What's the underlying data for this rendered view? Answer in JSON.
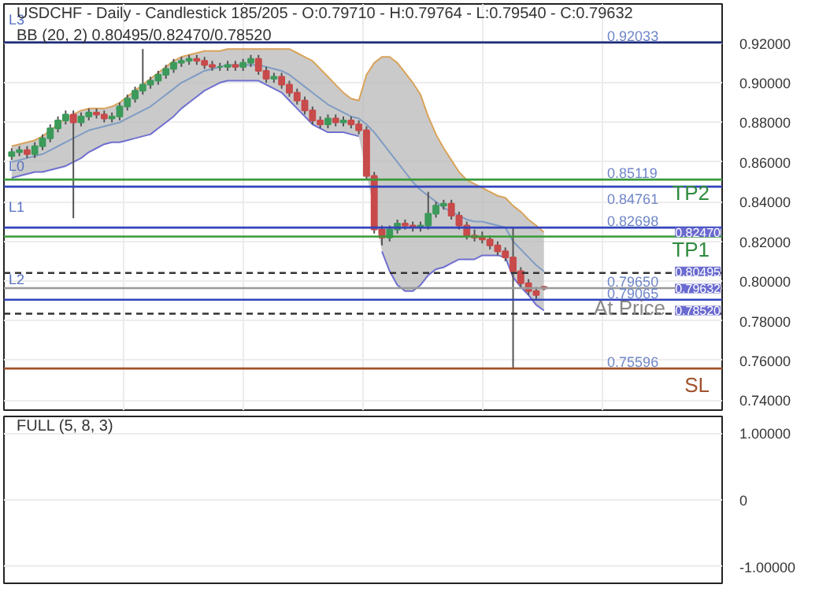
{
  "chart_data": [
    {
      "type": "candlestick",
      "title": "USDCHF - Daily - Candlestick   185/205 - O:0.79710 - H:0.79764 - L:0.79540 - C:0.79632",
      "subtitle": "BB (20, 2)   0.80495/0.82470/0.78520",
      "categories": [
        null,
        null,
        null,
        null,
        null,
        null,
        null,
        null,
        null,
        null,
        null,
        null,
        null,
        null,
        null,
        null,
        null,
        null,
        null,
        null,
        null,
        null,
        null,
        null,
        null,
        null,
        null,
        null,
        null,
        null,
        null,
        null,
        null,
        null,
        null,
        null,
        null,
        null,
        null,
        null,
        null,
        null,
        null,
        null,
        null,
        null,
        null,
        null,
        null,
        null,
        null,
        null,
        null,
        null,
        null,
        null,
        null,
        null,
        null,
        null,
        null,
        null,
        null,
        null,
        null,
        null,
        null,
        null,
        null,
        null
      ],
      "ohlc": [
        [
          0.863,
          0.867,
          0.861,
          0.865
        ],
        [
          0.865,
          0.868,
          0.863,
          0.866
        ],
        [
          0.866,
          0.868,
          0.862,
          0.864
        ],
        [
          0.864,
          0.87,
          0.862,
          0.868
        ],
        [
          0.868,
          0.874,
          0.866,
          0.872
        ],
        [
          0.872,
          0.879,
          0.87,
          0.877
        ],
        [
          0.877,
          0.883,
          0.875,
          0.881
        ],
        [
          0.881,
          0.886,
          0.879,
          0.884
        ],
        [
          0.884,
          0.886,
          0.8317,
          0.88
        ],
        [
          0.88,
          0.885,
          0.878,
          0.883
        ],
        [
          0.883,
          0.887,
          0.881,
          0.885
        ],
        [
          0.885,
          0.887,
          0.882,
          0.884
        ],
        [
          0.884,
          0.886,
          0.88,
          0.882
        ],
        [
          0.882,
          0.885,
          0.88,
          0.883
        ],
        [
          0.883,
          0.89,
          0.881,
          0.888
        ],
        [
          0.888,
          0.894,
          0.886,
          0.892
        ],
        [
          0.892,
          0.898,
          0.89,
          0.896
        ],
        [
          0.896,
          0.917,
          0.894,
          0.899
        ],
        [
          0.899,
          0.903,
          0.897,
          0.901
        ],
        [
          0.901,
          0.906,
          0.899,
          0.904
        ],
        [
          0.904,
          0.909,
          0.902,
          0.907
        ],
        [
          0.907,
          0.912,
          0.905,
          0.91
        ],
        [
          0.91,
          0.913,
          0.908,
          0.911
        ],
        [
          0.911,
          0.914,
          0.909,
          0.912
        ],
        [
          0.912,
          0.914,
          0.909,
          0.911
        ],
        [
          0.911,
          0.913,
          0.907,
          0.909
        ],
        [
          0.909,
          0.911,
          0.906,
          0.908
        ],
        [
          0.908,
          0.91,
          0.906,
          0.908
        ],
        [
          0.908,
          0.911,
          0.906,
          0.909
        ],
        [
          0.909,
          0.911,
          0.906,
          0.908
        ],
        [
          0.908,
          0.912,
          0.906,
          0.91
        ],
        [
          0.91,
          0.914,
          0.908,
          0.912
        ],
        [
          0.912,
          0.914,
          0.904,
          0.906
        ],
        [
          0.906,
          0.908,
          0.9,
          0.902
        ],
        [
          0.902,
          0.905,
          0.9,
          0.903
        ],
        [
          0.903,
          0.905,
          0.897,
          0.899
        ],
        [
          0.899,
          0.901,
          0.893,
          0.895
        ],
        [
          0.895,
          0.897,
          0.889,
          0.891
        ],
        [
          0.891,
          0.893,
          0.884,
          0.886
        ],
        [
          0.886,
          0.888,
          0.879,
          0.881
        ],
        [
          0.881,
          0.883,
          0.877,
          0.879
        ],
        [
          0.879,
          0.884,
          0.877,
          0.882
        ],
        [
          0.882,
          0.884,
          0.878,
          0.88
        ],
        [
          0.88,
          0.883,
          0.878,
          0.881
        ],
        [
          0.881,
          0.883,
          0.877,
          0.879
        ],
        [
          0.879,
          0.881,
          0.874,
          0.876
        ],
        [
          0.876,
          0.878,
          0.851,
          0.853
        ],
        [
          0.853,
          0.855,
          0.824,
          0.826
        ],
        [
          0.826,
          0.828,
          0.818,
          0.822
        ],
        [
          0.822,
          0.828,
          0.82,
          0.826
        ],
        [
          0.826,
          0.831,
          0.824,
          0.829
        ],
        [
          0.829,
          0.831,
          0.826,
          0.828
        ],
        [
          0.828,
          0.83,
          0.825,
          0.827
        ],
        [
          0.827,
          0.83,
          0.825,
          0.828
        ],
        [
          0.828,
          0.845,
          0.826,
          0.834
        ],
        [
          0.834,
          0.84,
          0.832,
          0.838
        ],
        [
          0.838,
          0.841,
          0.836,
          0.839
        ],
        [
          0.839,
          0.841,
          0.831,
          0.833
        ],
        [
          0.833,
          0.835,
          0.826,
          0.828
        ],
        [
          0.828,
          0.83,
          0.821,
          0.823
        ],
        [
          0.823,
          0.826,
          0.82,
          0.822
        ],
        [
          0.822,
          0.825,
          0.819,
          0.821
        ],
        [
          0.821,
          0.823,
          0.816,
          0.818
        ],
        [
          0.818,
          0.82,
          0.813,
          0.815
        ],
        [
          0.815,
          0.817,
          0.81,
          0.812
        ],
        [
          0.812,
          0.827,
          0.756,
          0.805
        ],
        [
          0.805,
          0.807,
          0.797,
          0.799
        ],
        [
          0.799,
          0.801,
          0.793,
          0.795
        ],
        [
          0.795,
          0.797,
          0.791,
          0.793
        ],
        [
          0.7971,
          0.79764,
          0.7954,
          0.79632
        ]
      ],
      "series": [
        {
          "type": "line",
          "color": "#7f9cc4",
          "values": [
            0.86,
            0.861,
            0.862,
            0.863,
            0.864,
            0.866,
            0.868,
            0.87,
            0.872,
            0.874,
            0.876,
            0.877,
            0.878,
            0.879,
            0.88,
            0.882,
            0.884,
            0.886,
            0.888,
            0.891,
            0.894,
            0.897,
            0.9,
            0.902,
            0.904,
            0.906,
            0.907,
            0.908,
            0.909,
            0.909,
            0.909,
            0.909,
            0.909,
            0.908,
            0.907,
            0.906,
            0.904,
            0.901,
            0.898,
            0.895,
            0.892,
            0.889,
            0.887,
            0.885,
            0.883,
            0.882,
            0.879,
            0.875,
            0.87,
            0.865,
            0.86,
            0.855,
            0.85,
            0.846,
            0.843,
            0.84,
            0.837,
            0.835,
            0.833,
            0.831,
            0.83,
            0.83,
            0.829,
            0.828,
            0.827,
            0.82,
            0.816,
            0.812,
            0.808,
            0.80495
          ],
          "lower": [
            0.852,
            0.853,
            0.854,
            0.855,
            0.855,
            0.856,
            0.857,
            0.858,
            0.86,
            0.862,
            0.865,
            0.867,
            0.869,
            0.87,
            0.87,
            0.871,
            0.872,
            0.873,
            0.874,
            0.877,
            0.88,
            0.883,
            0.887,
            0.89,
            0.893,
            0.896,
            0.898,
            0.9,
            0.901,
            0.901,
            0.901,
            0.901,
            0.901,
            0.899,
            0.897,
            0.895,
            0.891,
            0.887,
            0.883,
            0.879,
            0.877,
            0.875,
            0.875,
            0.875,
            0.874,
            0.873,
            0.854,
            0.835,
            0.815,
            0.805,
            0.798,
            0.795,
            0.795,
            0.798,
            0.803,
            0.806,
            0.807,
            0.809,
            0.811,
            0.811,
            0.811,
            0.813,
            0.813,
            0.813,
            0.812,
            0.802,
            0.797,
            0.793,
            0.788,
            0.7852
          ],
          "upper": [
            0.868,
            0.869,
            0.87,
            0.871,
            0.873,
            0.876,
            0.879,
            0.882,
            0.884,
            0.886,
            0.887,
            0.887,
            0.887,
            0.888,
            0.89,
            0.893,
            0.896,
            0.899,
            0.902,
            0.905,
            0.908,
            0.911,
            0.913,
            0.914,
            0.915,
            0.916,
            0.916,
            0.916,
            0.917,
            0.917,
            0.917,
            0.917,
            0.917,
            0.917,
            0.917,
            0.917,
            0.917,
            0.915,
            0.913,
            0.911,
            0.907,
            0.903,
            0.899,
            0.895,
            0.892,
            0.891,
            0.904,
            0.91,
            0.913,
            0.913,
            0.91,
            0.905,
            0.9,
            0.894,
            0.883,
            0.874,
            0.867,
            0.861,
            0.855,
            0.851,
            0.849,
            0.847,
            0.845,
            0.843,
            0.842,
            0.838,
            0.835,
            0.831,
            0.828,
            0.8247
          ]
        },
        {
          "type": "line",
          "color": "#d9a35a",
          "values": [
            0.868,
            0.869,
            0.87,
            0.871,
            0.873,
            0.876,
            0.879,
            0.882,
            0.884,
            0.886,
            0.887,
            0.887,
            0.887,
            0.888,
            0.89,
            0.893,
            0.896,
            0.899,
            0.902,
            0.905,
            0.908,
            0.911,
            0.913,
            0.914,
            0.915,
            0.916,
            0.916,
            0.916,
            0.917,
            0.917,
            0.917,
            0.917,
            0.917,
            0.917,
            0.917,
            0.917,
            0.917,
            0.915,
            0.913,
            0.911,
            0.907,
            0.903,
            0.899,
            0.895,
            0.892,
            0.891,
            0.904,
            0.91,
            0.913,
            0.913,
            0.91,
            0.905,
            0.9,
            0.894,
            0.883,
            0.874,
            0.867,
            0.861,
            0.855,
            0.851,
            0.849,
            0.847,
            0.845,
            0.843,
            0.842,
            0.838,
            0.835,
            0.831,
            0.828,
            0.8247
          ]
        },
        {
          "type": "line",
          "color": "#6f6fd0",
          "values": [
            0.852,
            0.853,
            0.854,
            0.855,
            0.855,
            0.856,
            0.857,
            0.858,
            0.86,
            0.862,
            0.865,
            0.867,
            0.869,
            0.87,
            0.87,
            0.871,
            0.872,
            0.873,
            0.874,
            0.877,
            0.88,
            0.883,
            0.887,
            0.89,
            0.893,
            0.896,
            0.898,
            0.9,
            0.901,
            0.901,
            0.901,
            0.901,
            0.901,
            0.899,
            0.897,
            0.895,
            0.891,
            0.887,
            0.883,
            0.879,
            0.877,
            0.875,
            0.875,
            0.875,
            0.874,
            0.873,
            null,
            null,
            0.815,
            0.805,
            0.798,
            0.795,
            0.795,
            0.798,
            0.803,
            0.806,
            0.807,
            0.809,
            0.811,
            0.811,
            0.811,
            0.813,
            0.813,
            0.813,
            0.812,
            0.802,
            0.797,
            0.793,
            0.788,
            0.7852
          ]
        }
      ],
      "ylim": [
        0.735,
        0.9397
      ],
      "yticks": [
        {
          "value": 0.74,
          "label": "0.74000"
        },
        {
          "value": 0.76,
          "label": "0.76000"
        },
        {
          "value": 0.78,
          "label": "0.78000"
        },
        {
          "value": 0.8,
          "label": "0.80000"
        },
        {
          "value": 0.82,
          "label": "0.82000"
        },
        {
          "value": 0.84,
          "label": "0.84000"
        },
        {
          "value": 0.86,
          "label": "0.86000"
        },
        {
          "value": 0.88,
          "label": "0.88000"
        },
        {
          "value": 0.9,
          "label": "0.90000"
        },
        {
          "value": 0.92,
          "label": "0.92000"
        }
      ],
      "tick_labels": "y",
      "grid": true,
      "ref_lines": [
        {
          "axis": "y",
          "value": 0.92033,
          "label": "0.92033",
          "color": "#1c2a7a"
        },
        {
          "axis": "y",
          "value": 0.85119,
          "label": "0.85119",
          "color": "#3a9a3a"
        },
        {
          "axis": "y",
          "value": 0.84761,
          "label": "0.84761",
          "color": "#3344bb"
        },
        {
          "axis": "y",
          "value": 0.82698,
          "label": "0.82698",
          "color": "#3344bb"
        },
        {
          "axis": "y",
          "value": 0.8225,
          "label": null,
          "color": "#3a9a3a"
        },
        {
          "axis": "y",
          "value": 0.8041,
          "label": null,
          "color": "#333333",
          "line_style": "dashed"
        },
        {
          "axis": "y",
          "value": 0.7965,
          "label": "0.79650",
          "color": "#999999"
        },
        {
          "axis": "y",
          "value": 0.79065,
          "label": "0.79065",
          "color": "#3344bb"
        },
        {
          "axis": "y",
          "value": 0.7836,
          "label": null,
          "color": "#333333",
          "line_style": "dashed"
        },
        {
          "axis": "y",
          "value": 0.75596,
          "label": "0.75596",
          "color": "#a0522d"
        }
      ],
      "annotations": [
        "L3",
        "L0",
        "L1",
        "L2",
        "TP2",
        "TP1",
        "At Price",
        "SL",
        {
          "text": "0.82470",
          "y": 0.8247
        },
        {
          "text": "0.80495",
          "y": 0.80495
        },
        {
          "text": "0.79632",
          "y": 0.79632
        },
        {
          "text": "0.78520",
          "y": 0.7852
        }
      ]
    },
    {
      "type": "other",
      "title": "FULL (5, 8, 3)",
      "annotations": [
        "1.00000",
        "0",
        "-1.00000"
      ]
    }
  ]
}
